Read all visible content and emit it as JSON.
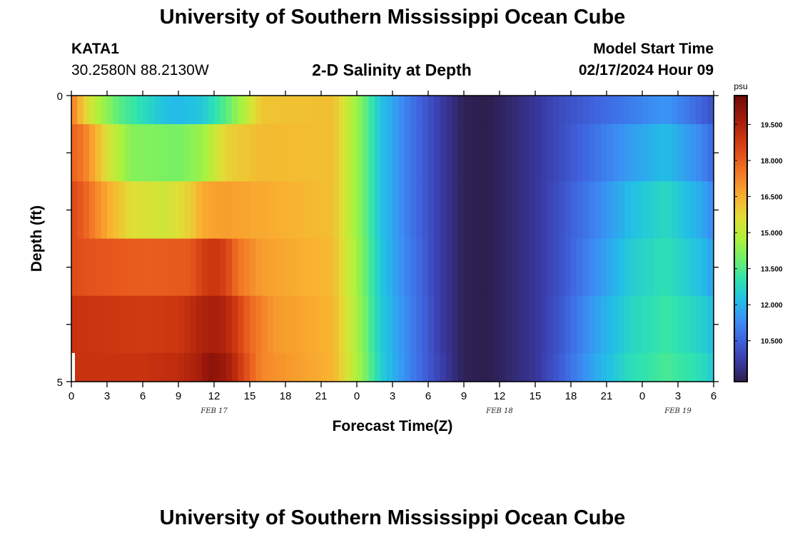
{
  "header": {
    "title": "University of Southern Mississippi Ocean Cube",
    "station_id": "KATA1",
    "station_coords": "30.2580N  88.2130W",
    "plot_title": "2-D Salinity at Depth",
    "model_start_label": "Model Start Time",
    "model_start_value": "02/17/2024 Hour 09"
  },
  "footer": {
    "title": "University of Southern Mississippi Ocean Cube"
  },
  "chart_data": {
    "type": "heatmap",
    "title": "2-D Salinity at Depth",
    "xlabel": "Forecast Time(Z)",
    "ylabel": "Depth (ft)",
    "x_tick_labels": [
      "0",
      "3",
      "6",
      "9",
      "12",
      "15",
      "18",
      "21",
      "0",
      "3",
      "6",
      "9",
      "12",
      "15",
      "18",
      "21",
      "0",
      "3",
      "6"
    ],
    "x_range_hours": [
      0,
      54
    ],
    "date_labels": [
      {
        "text": "FEB 17",
        "hour": 12
      },
      {
        "text": "FEB 18",
        "hour": 36
      },
      {
        "text": "FEB 19",
        "hour": 51
      }
    ],
    "y_tick_labels": [
      "0",
      "5"
    ],
    "y_range": [
      0,
      5
    ],
    "depth_bands": [
      0,
      0.5,
      1.5,
      2.5,
      3.5,
      4.5,
      5
    ],
    "colorbar": {
      "units": "psu",
      "range": [
        8.8,
        20.7
      ],
      "tick_values": [
        10.5,
        12,
        13.5,
        15,
        16.5,
        18,
        19.5
      ],
      "tick_labels": [
        "10.500",
        "12.000",
        "13.500",
        "15.000",
        "16.500",
        "18.000",
        "19.500"
      ],
      "colors": [
        "#2d1e4c",
        "#3a3aa6",
        "#3f63de",
        "#3b8ff5",
        "#22bfe6",
        "#2ee3b0",
        "#6ff06a",
        "#aef23c",
        "#e0de36",
        "#f9b230",
        "#f5822a",
        "#e6561c",
        "#c8320f",
        "#9c190a",
        "#6e0c06"
      ]
    },
    "depth_profiles": [
      {
        "depth": 0,
        "x": [
          0,
          1,
          2,
          4,
          6,
          8,
          9,
          11,
          13,
          16,
          22,
          24,
          26,
          29,
          31,
          33,
          35,
          39,
          41,
          44,
          47,
          50,
          53,
          54
        ],
        "y": [
          17.5,
          16,
          15,
          13.6,
          12.9,
          12.2,
          12.1,
          12.4,
          13.6,
          16.1,
          16.2,
          14.5,
          12.3,
          10.6,
          9.7,
          8.9,
          8.8,
          9.5,
          10.0,
          10.5,
          11.0,
          11.5,
          10.5,
          10.1
        ]
      },
      {
        "depth": 1,
        "x": [
          0,
          1,
          3,
          5,
          9,
          11,
          13,
          16,
          22,
          24,
          26,
          29,
          31,
          33,
          35,
          39,
          41,
          44,
          47,
          50,
          53,
          54
        ],
        "y": [
          17.9,
          17.5,
          15.5,
          14.2,
          14.0,
          14.5,
          15.8,
          16.3,
          16.2,
          14.5,
          12.3,
          10.6,
          9.7,
          8.9,
          8.8,
          9.5,
          10.0,
          10.8,
          11.6,
          12.2,
          11.2,
          10.6
        ]
      },
      {
        "depth": 2,
        "x": [
          0,
          1,
          3,
          5,
          8,
          10,
          11,
          13,
          16,
          22,
          24,
          26,
          29,
          31,
          33,
          35,
          39,
          41,
          44,
          47,
          50,
          53,
          54
        ],
        "y": [
          18.5,
          18.0,
          16.6,
          15.6,
          15.3,
          15.9,
          16.6,
          16.8,
          16.6,
          16.2,
          14.5,
          12.3,
          10.6,
          9.7,
          8.9,
          8.8,
          9.5,
          10.1,
          11.1,
          12.2,
          12.8,
          11.8,
          11.2
        ]
      },
      {
        "depth": 3,
        "x": [
          0,
          2,
          6,
          10,
          11,
          12,
          13,
          14,
          16,
          22,
          24,
          26,
          29,
          31,
          33,
          35,
          39,
          41,
          44,
          47,
          50,
          53,
          54
        ],
        "y": [
          18.4,
          18.2,
          18.0,
          18.1,
          18.7,
          19.0,
          18.6,
          17.6,
          16.8,
          16.3,
          14.6,
          12.4,
          10.7,
          9.7,
          8.9,
          8.8,
          9.5,
          10.1,
          11.3,
          12.5,
          13.0,
          12.2,
          11.6
        ]
      },
      {
        "depth": 4,
        "x": [
          0,
          3,
          6,
          9,
          11,
          12,
          13,
          14,
          15,
          17,
          22,
          24,
          26,
          29,
          31,
          33,
          35,
          39,
          41,
          44,
          47,
          50,
          53,
          54
        ],
        "y": [
          19.0,
          18.9,
          18.8,
          18.9,
          19.5,
          19.7,
          19.4,
          18.7,
          17.8,
          16.9,
          16.4,
          14.7,
          12.5,
          10.8,
          9.7,
          8.9,
          8.8,
          9.5,
          10.2,
          11.6,
          12.7,
          13.2,
          12.6,
          12.2
        ]
      },
      {
        "depth": 5,
        "x": [
          0,
          3,
          6,
          9,
          11,
          11.5,
          12.5,
          13.5,
          14.5,
          16,
          22,
          24,
          26,
          29,
          31,
          33,
          35,
          39,
          41,
          44,
          47,
          50,
          53,
          54
        ],
        "y": [
          19.0,
          19.0,
          19.0,
          19.2,
          19.7,
          20.2,
          20.0,
          19.5,
          18.5,
          17.2,
          16.4,
          14.8,
          12.6,
          10.8,
          9.8,
          8.9,
          8.8,
          9.5,
          10.3,
          11.8,
          12.9,
          13.4,
          12.9,
          12.4
        ]
      }
    ]
  }
}
